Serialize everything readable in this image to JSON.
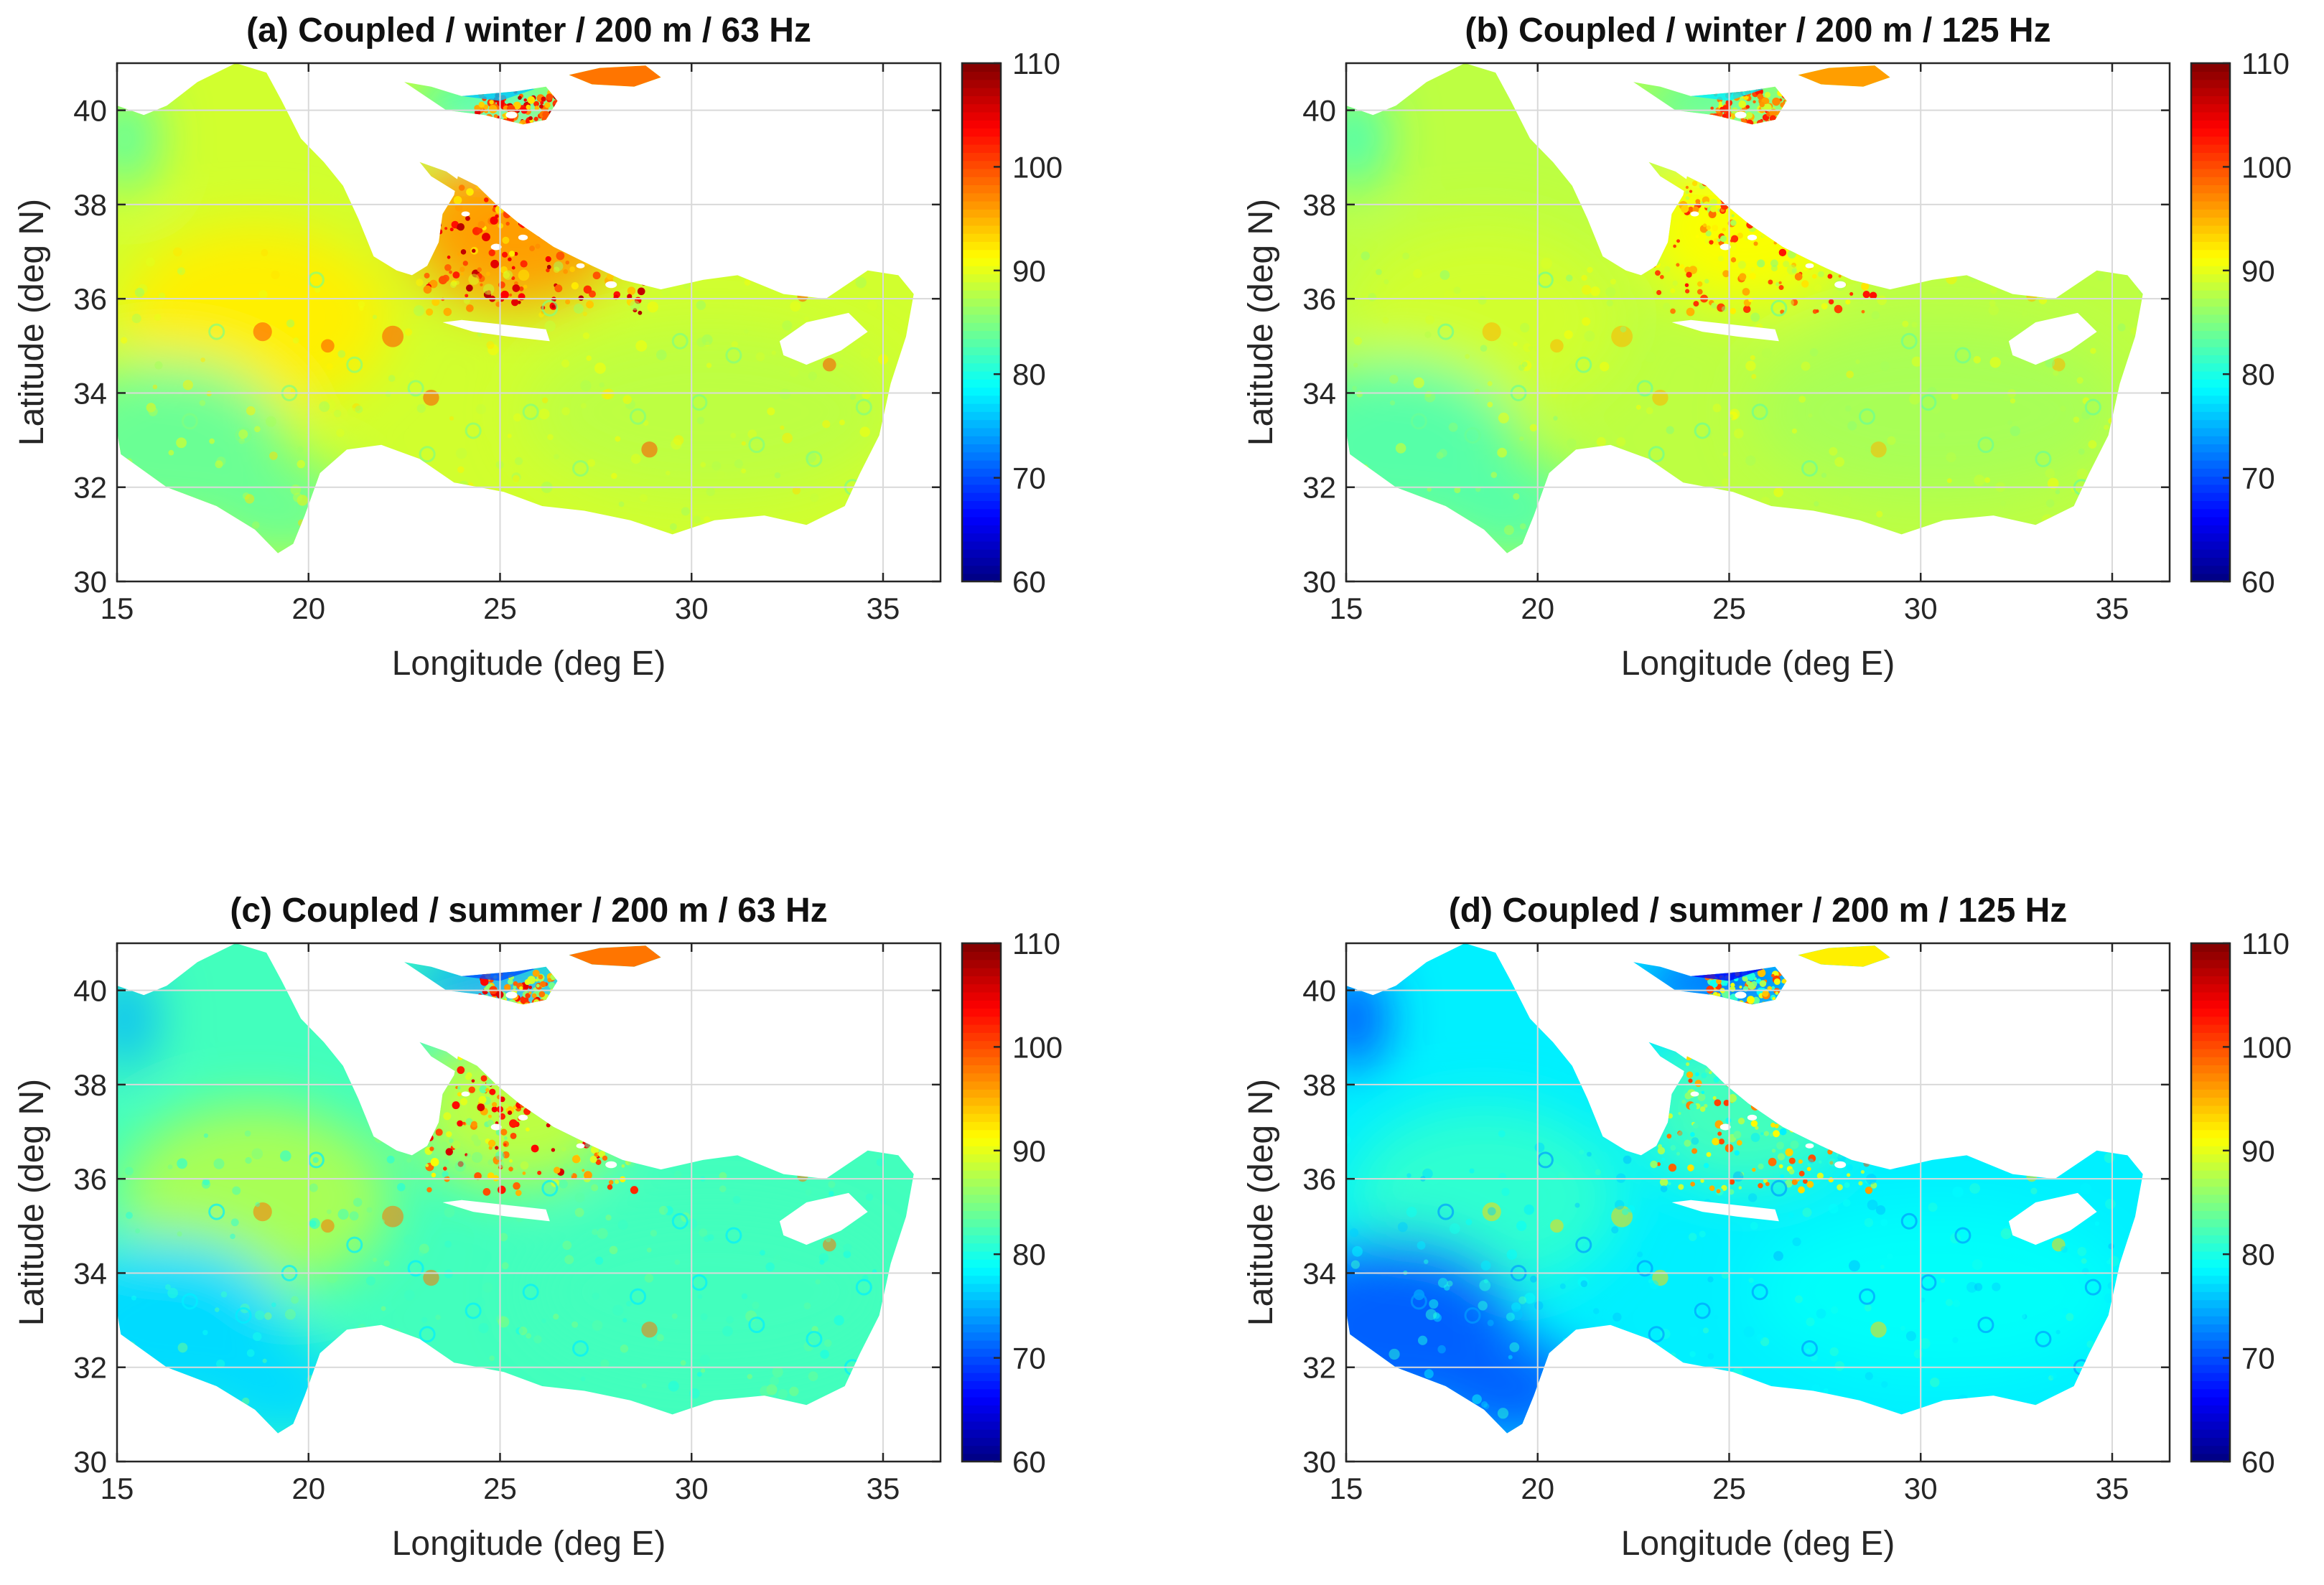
{
  "figure": {
    "colors": {
      "frame": "#262626",
      "grid": "#d9d9d9",
      "background": "#ffffff"
    },
    "colormap": "jet"
  },
  "chart_data": [
    {
      "type": "heatmap",
      "title": "(a) Coupled / winter / 200 m / 63 Hz",
      "xlabel": "Longitude (deg E)",
      "ylabel": "Latitude (deg N)",
      "xlim": [
        15,
        36.5
      ],
      "ylim": [
        30,
        41
      ],
      "xticks": [
        "15",
        "20",
        "25",
        "30",
        "35"
      ],
      "yticks": [
        "30",
        "32",
        "34",
        "36",
        "38",
        "40"
      ],
      "colorbar": {
        "ticks": [
          "60",
          "70",
          "80",
          "90",
          "100",
          "110"
        ],
        "range": [
          60,
          110
        ]
      },
      "region_values": {
        "west_ionian": 92,
        "southwest_coast": 84,
        "central_basin": 89,
        "levantine": 88,
        "aegean": 96,
        "north_aegean": 80,
        "marmara": 98,
        "hotspots": 102
      }
    },
    {
      "type": "heatmap",
      "title": "(b) Coupled / winter / 200 m / 125 Hz",
      "xlabel": "Longitude (deg E)",
      "ylabel": "Latitude (deg N)",
      "xlim": [
        15,
        36.5
      ],
      "ylim": [
        30,
        41
      ],
      "xticks": [
        "15",
        "20",
        "25",
        "30",
        "35"
      ],
      "yticks": [
        "30",
        "32",
        "34",
        "36",
        "38",
        "40"
      ],
      "colorbar": {
        "ticks": [
          "60",
          "70",
          "80",
          "90",
          "100",
          "110"
        ],
        "range": [
          60,
          110
        ]
      },
      "region_values": {
        "west_ionian": 89,
        "southwest_coast": 83,
        "central_basin": 88,
        "levantine": 87,
        "aegean": 91,
        "north_aegean": 82,
        "marmara": 96,
        "hotspots": 97
      }
    },
    {
      "type": "heatmap",
      "title": "(c) Coupled / summer / 200 m / 63 Hz",
      "xlabel": "Longitude (deg E)",
      "ylabel": "Latitude (deg N)",
      "xlim": [
        15,
        36.5
      ],
      "ylim": [
        30,
        41
      ],
      "xticks": [
        "15",
        "20",
        "25",
        "30",
        "35"
      ],
      "yticks": [
        "30",
        "32",
        "34",
        "36",
        "38",
        "40"
      ],
      "colorbar": {
        "ticks": [
          "60",
          "70",
          "80",
          "90",
          "100",
          "110"
        ],
        "range": [
          60,
          110
        ]
      },
      "region_values": {
        "west_ionian": 87,
        "southwest_coast": 77,
        "central_basin": 82,
        "levantine": 82,
        "aegean": 88,
        "north_aegean": 74,
        "marmara": 98,
        "hotspots": 100
      }
    },
    {
      "type": "heatmap",
      "title": "(d) Coupled / summer / 200 m / 125 Hz",
      "xlabel": "Longitude (deg E)",
      "ylabel": "Latitude (deg N)",
      "xlim": [
        15,
        36.5
      ],
      "ylim": [
        30,
        41
      ],
      "xticks": [
        "15",
        "20",
        "25",
        "30",
        "35"
      ],
      "yticks": [
        "30",
        "32",
        "34",
        "36",
        "38",
        "40"
      ],
      "colorbar": {
        "ticks": [
          "60",
          "70",
          "80",
          "90",
          "100",
          "110"
        ],
        "range": [
          60,
          110
        ]
      },
      "region_values": {
        "west_ionian": 81,
        "southwest_coast": 71,
        "central_basin": 78,
        "levantine": 79,
        "aegean": 82,
        "north_aegean": 70,
        "marmara": 92,
        "hotspots": 95
      }
    }
  ]
}
